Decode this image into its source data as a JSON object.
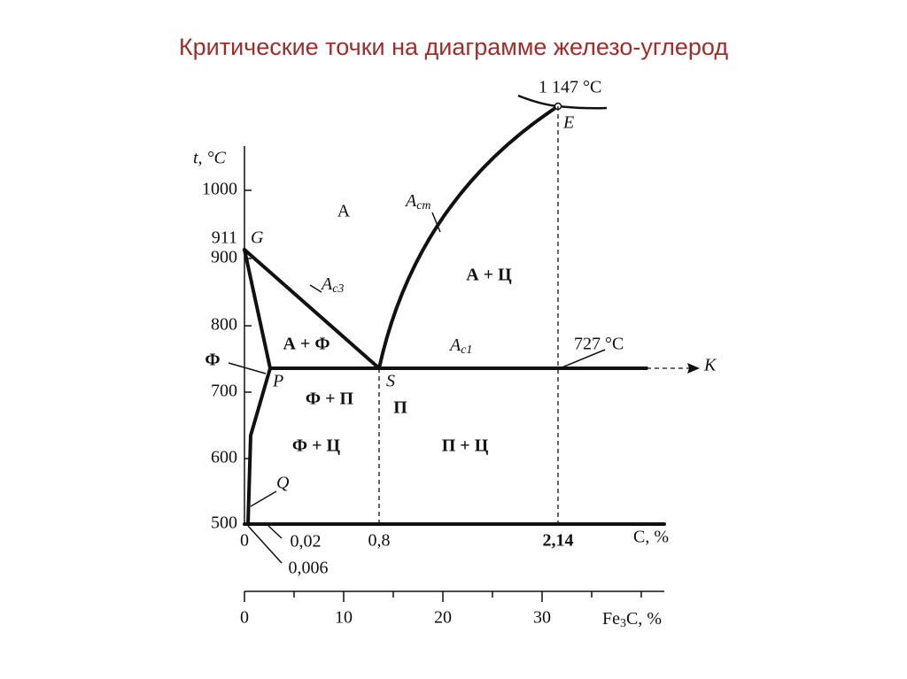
{
  "title": "Критические точки на диаграмме железо-углерод",
  "axis": {
    "t_label": "t, °C",
    "c_label": "C, %",
    "fe3c_label": {
      "main": "Fe",
      "sub": "3",
      "rest": "C, %"
    }
  },
  "t_ticks": [
    "1000",
    "911",
    "900",
    "800",
    "700",
    "600",
    "500"
  ],
  "c_ticks": [
    "0",
    "0,02",
    "0,8",
    "2,14",
    "0,006"
  ],
  "fe3c_ticks": [
    "0",
    "10",
    "20",
    "30"
  ],
  "points": {
    "G": "G",
    "P": "P",
    "S": "S",
    "E": "E",
    "K": "K",
    "Q": "Q"
  },
  "lines": {
    "Acm": {
      "main": "A",
      "sub": "cm"
    },
    "Ac3": {
      "main": "A",
      "sub": "c3"
    },
    "Ac1": {
      "main": "A",
      "sub": "c1"
    }
  },
  "temps": {
    "eutectic": "1 147 °C",
    "eutectoid": "727 °C"
  },
  "regions": {
    "austenite": "А",
    "a_c": "А + Ц",
    "a_f": "А + Ф",
    "ferrite": "Ф",
    "f_p": "Ф + П",
    "pearlite": "П",
    "f_c": "Ф + Ц",
    "p_c": "П + Ц"
  }
}
